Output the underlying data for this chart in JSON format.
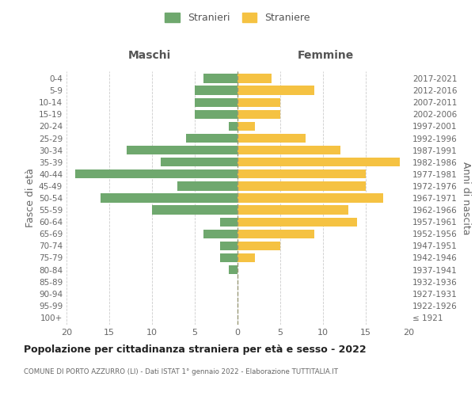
{
  "age_groups": [
    "100+",
    "95-99",
    "90-94",
    "85-89",
    "80-84",
    "75-79",
    "70-74",
    "65-69",
    "60-64",
    "55-59",
    "50-54",
    "45-49",
    "40-44",
    "35-39",
    "30-34",
    "25-29",
    "20-24",
    "15-19",
    "10-14",
    "5-9",
    "0-4"
  ],
  "birth_years": [
    "≤ 1921",
    "1922-1926",
    "1927-1931",
    "1932-1936",
    "1937-1941",
    "1942-1946",
    "1947-1951",
    "1952-1956",
    "1957-1961",
    "1962-1966",
    "1967-1971",
    "1972-1976",
    "1977-1981",
    "1982-1986",
    "1987-1991",
    "1992-1996",
    "1997-2001",
    "2002-2006",
    "2007-2011",
    "2012-2016",
    "2017-2021"
  ],
  "maschi": [
    0,
    0,
    0,
    0,
    1,
    2,
    2,
    4,
    2,
    10,
    16,
    7,
    19,
    9,
    13,
    6,
    1,
    5,
    5,
    5,
    4
  ],
  "femmine": [
    0,
    0,
    0,
    0,
    0,
    2,
    5,
    9,
    14,
    13,
    17,
    15,
    15,
    19,
    12,
    8,
    2,
    5,
    5,
    9,
    4
  ],
  "color_maschi": "#6fa86e",
  "color_femmine": "#f5c242",
  "title": "Popolazione per cittadinanza straniera per età e sesso - 2022",
  "subtitle": "COMUNE DI PORTO AZZURRO (LI) - Dati ISTAT 1° gennaio 2022 - Elaborazione TUTTITALIA.IT",
  "xlabel_left": "Maschi",
  "xlabel_right": "Femmine",
  "ylabel_left": "Fasce di età",
  "ylabel_right": "Anni di nascita",
  "legend_maschi": "Stranieri",
  "legend_femmine": "Straniere",
  "xlim": 20,
  "background_color": "#ffffff",
  "grid_color": "#cccccc"
}
